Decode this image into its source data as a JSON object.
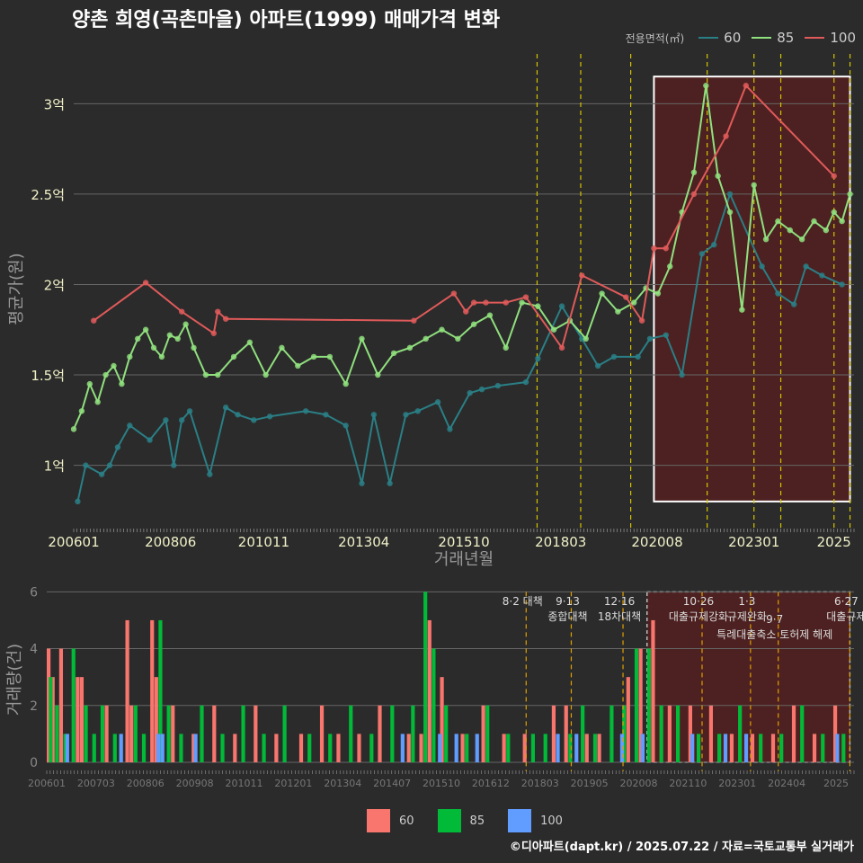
{
  "title": "양촌 희영(곡촌마을) 아파트(1999) 매매가격 변화",
  "footer": "©디아파트(dapt.kr) / 2025.07.22 / 자료=국토교통부 실거래가",
  "legend_top": {
    "title": "전용면적(㎡)",
    "items": [
      {
        "label": "60",
        "color": "#2a7f86"
      },
      {
        "label": "85",
        "color": "#90e07e"
      },
      {
        "label": "100",
        "color": "#e05a5a"
      }
    ]
  },
  "legend_bottom": {
    "items": [
      {
        "label": "60",
        "color": "#f8766d"
      },
      {
        "label": "85",
        "color": "#00ba38"
      },
      {
        "label": "100",
        "color": "#619cff"
      }
    ]
  },
  "chart_data": [
    {
      "type": "line",
      "name": "price-chart",
      "ylabel": "평균가(원)",
      "xlabel": "거래년월",
      "xlim": [
        2006.0,
        2025.5
      ],
      "ylim": [
        0.65,
        3.3
      ],
      "ytick_values": [
        1.0,
        1.5,
        2.0,
        2.5,
        3.0
      ],
      "yticks": [
        "1억",
        "1.5억",
        "2억",
        "2.5억",
        "3억"
      ],
      "xtick_values": [
        2006.0,
        2008.42,
        2010.75,
        2013.25,
        2015.75,
        2018.17,
        2020.58,
        2023.0,
        2025.0
      ],
      "xticks": [
        "200601",
        "200806",
        "201011",
        "201304",
        "201510",
        "201803",
        "202008",
        "202301",
        "2025"
      ],
      "policy_lines": [
        2017.58,
        2018.67,
        2019.92,
        2021.83,
        2023.0,
        2023.67,
        2025.0,
        2025.4
      ],
      "highlight": {
        "x0": 2020.5,
        "x1": 2025.4,
        "y0": 0.8,
        "y1": 3.15
      },
      "series": [
        {
          "name": "60",
          "color": "#2a7f86",
          "x": [
            2006.1,
            2006.3,
            2006.7,
            2006.9,
            2007.1,
            2007.4,
            2007.9,
            2008.3,
            2008.5,
            2008.7,
            2008.9,
            2009.4,
            2009.8,
            2010.1,
            2010.5,
            2010.9,
            2011.8,
            2012.3,
            2012.8,
            2013.2,
            2013.5,
            2013.9,
            2014.3,
            2014.6,
            2015.1,
            2015.4,
            2015.9,
            2016.2,
            2016.6,
            2017.3,
            2017.6,
            2018.2,
            2018.7,
            2019.1,
            2019.5,
            2020.1,
            2020.4,
            2020.8,
            2021.2,
            2021.7,
            2022.0,
            2022.4,
            2023.2,
            2023.6,
            2024.0,
            2024.3,
            2024.7,
            2025.2
          ],
          "y": [
            0.8,
            1.0,
            0.95,
            1.0,
            1.1,
            1.22,
            1.14,
            1.25,
            1.0,
            1.25,
            1.3,
            0.95,
            1.32,
            1.28,
            1.25,
            1.27,
            1.3,
            1.28,
            1.22,
            0.9,
            1.28,
            0.9,
            1.28,
            1.3,
            1.35,
            1.2,
            1.4,
            1.42,
            1.44,
            1.46,
            1.59,
            1.88,
            1.7,
            1.55,
            1.6,
            1.6,
            1.7,
            1.72,
            1.5,
            2.17,
            2.22,
            2.5,
            2.1,
            1.95,
            1.89,
            2.1,
            2.05,
            2.0
          ]
        },
        {
          "name": "85",
          "color": "#90e07e",
          "x": [
            2006.0,
            2006.2,
            2006.4,
            2006.6,
            2006.8,
            2007.0,
            2007.2,
            2007.4,
            2007.6,
            2007.8,
            2008.0,
            2008.2,
            2008.4,
            2008.6,
            2008.8,
            2009.0,
            2009.3,
            2009.6,
            2010.0,
            2010.4,
            2010.8,
            2011.2,
            2011.6,
            2012.0,
            2012.4,
            2012.8,
            2013.2,
            2013.6,
            2014.0,
            2014.4,
            2014.8,
            2015.2,
            2015.6,
            2016.0,
            2016.4,
            2016.8,
            2017.2,
            2017.6,
            2018.0,
            2018.4,
            2018.8,
            2019.2,
            2019.6,
            2020.0,
            2020.3,
            2020.6,
            2020.9,
            2021.2,
            2021.5,
            2021.8,
            2022.1,
            2022.4,
            2022.7,
            2023.0,
            2023.3,
            2023.6,
            2023.9,
            2024.2,
            2024.5,
            2024.8,
            2025.0,
            2025.2,
            2025.4
          ],
          "y": [
            1.2,
            1.3,
            1.45,
            1.35,
            1.5,
            1.55,
            1.45,
            1.6,
            1.7,
            1.75,
            1.65,
            1.6,
            1.72,
            1.7,
            1.78,
            1.65,
            1.5,
            1.5,
            1.6,
            1.68,
            1.5,
            1.65,
            1.55,
            1.6,
            1.6,
            1.45,
            1.7,
            1.5,
            1.62,
            1.65,
            1.7,
            1.75,
            1.7,
            1.78,
            1.83,
            1.65,
            1.9,
            1.88,
            1.75,
            1.8,
            1.7,
            1.95,
            1.85,
            1.9,
            1.98,
            1.95,
            2.1,
            2.4,
            2.62,
            3.1,
            2.6,
            2.4,
            1.86,
            2.55,
            2.25,
            2.35,
            2.3,
            2.25,
            2.35,
            2.3,
            2.4,
            2.35,
            2.5
          ]
        },
        {
          "name": "100",
          "color": "#e05a5a",
          "x": [
            2006.5,
            2007.8,
            2008.7,
            2009.5,
            2009.6,
            2009.8,
            2014.5,
            2015.5,
            2015.8,
            2016.0,
            2016.3,
            2016.8,
            2017.3,
            2018.2,
            2018.7,
            2019.8,
            2020.2,
            2020.5,
            2020.8,
            2021.5,
            2022.3,
            2022.8,
            2025.0
          ],
          "y": [
            1.8,
            2.01,
            1.85,
            1.73,
            1.85,
            1.81,
            1.8,
            1.95,
            1.85,
            1.9,
            1.9,
            1.9,
            1.93,
            1.65,
            2.05,
            1.93,
            1.8,
            2.2,
            2.2,
            2.5,
            2.82,
            3.1,
            2.6
          ]
        }
      ]
    },
    {
      "type": "bar",
      "name": "volume-chart",
      "ylabel": "거래량(건)",
      "ylim": [
        0,
        6.2
      ],
      "ytick_values": [
        0,
        2,
        4,
        6
      ],
      "yticks": [
        "0",
        "2",
        "4",
        "6"
      ],
      "xticks": [
        "200601",
        "200703",
        "200806",
        "200908",
        "201011",
        "201201",
        "201304",
        "201407",
        "201510",
        "201612",
        "201803",
        "201905",
        "202008",
        "202110",
        "202301",
        "202404",
        "2025"
      ],
      "annotations": [
        {
          "x": 2017.58,
          "line1": "8·2 대책",
          "line2": ""
        },
        {
          "x": 2018.67,
          "line1": "9·13",
          "line2": "종합대책"
        },
        {
          "x": 2019.92,
          "line1": "12·16",
          "line2": "18차대책"
        },
        {
          "x": 2021.83,
          "line1": "10·26",
          "line2": "대출규제강화"
        },
        {
          "x": 2023.0,
          "line1": "1·3",
          "line2": "규제완화"
        },
        {
          "x": 2023.67,
          "line1": "9·7",
          "line2": "특례대출축소 토허제 해제"
        },
        {
          "x": 2025.4,
          "line1": "6·27",
          "line2": "대출규제"
        }
      ],
      "series": [
        {
          "name": "60",
          "color": "#f8766d",
          "x": [
            2006.0,
            2006.1,
            2006.3,
            2006.7,
            2006.8,
            2007.4,
            2007.9,
            2008.0,
            2008.5,
            2008.6,
            2009.0,
            2009.5,
            2010.0,
            2010.5,
            2011.0,
            2011.5,
            2012.1,
            2012.6,
            2013.0,
            2013.5,
            2014.0,
            2014.7,
            2015.0,
            2015.2,
            2015.5,
            2016.0,
            2016.5,
            2017.0,
            2017.5,
            2018.2,
            2018.5,
            2019.0,
            2019.3,
            2020.0,
            2020.3,
            2020.6,
            2021.0,
            2021.5,
            2022.0,
            2022.5,
            2023.0,
            2023.5,
            2024.0,
            2024.5,
            2025.0
          ],
          "y": [
            4,
            3,
            4,
            3,
            3,
            2,
            5,
            2,
            5,
            3,
            2,
            1,
            2,
            1,
            2,
            1,
            1,
            2,
            1,
            1,
            2,
            1,
            1,
            5,
            3,
            1,
            2,
            1,
            1,
            2,
            2,
            1,
            1,
            3,
            4,
            5,
            2,
            2,
            2,
            1,
            1,
            1,
            2,
            1,
            2
          ]
        },
        {
          "name": "85",
          "color": "#00ba38",
          "x": [
            2006.05,
            2006.2,
            2006.4,
            2006.6,
            2006.9,
            2007.1,
            2007.3,
            2007.6,
            2008.1,
            2008.3,
            2008.7,
            2008.9,
            2009.2,
            2009.7,
            2010.2,
            2010.7,
            2011.2,
            2011.7,
            2012.3,
            2012.8,
            2013.3,
            2013.8,
            2014.3,
            2014.8,
            2015.1,
            2015.3,
            2015.6,
            2016.1,
            2016.6,
            2017.1,
            2017.7,
            2018.0,
            2018.6,
            2018.9,
            2019.2,
            2019.6,
            2019.9,
            2020.2,
            2020.5,
            2020.8,
            2021.2,
            2021.7,
            2022.2,
            2022.7,
            2023.2,
            2023.7,
            2024.2,
            2024.7,
            2025.2
          ],
          "y": [
            3,
            2,
            1,
            4,
            2,
            1,
            2,
            1,
            2,
            1,
            5,
            2,
            1,
            2,
            1,
            2,
            1,
            2,
            1,
            1,
            2,
            1,
            2,
            2,
            6,
            4,
            2,
            1,
            2,
            1,
            1,
            1,
            1,
            2,
            1,
            2,
            2,
            4,
            4,
            2,
            2,
            1,
            1,
            2,
            1,
            1,
            2,
            1,
            1
          ]
        },
        {
          "name": "100",
          "color": "#619cff",
          "x": [
            2006.45,
            2007.75,
            2008.65,
            2008.75,
            2009.55,
            2014.55,
            2015.45,
            2015.85,
            2016.35,
            2018.3,
            2018.75,
            2019.85,
            2020.35,
            2021.55,
            2022.35,
            2022.85,
            2025.05
          ],
          "y": [
            1,
            1,
            1,
            1,
            1,
            1,
            1,
            1,
            1,
            1,
            1,
            1,
            1,
            1,
            1,
            1,
            1
          ]
        }
      ]
    }
  ]
}
